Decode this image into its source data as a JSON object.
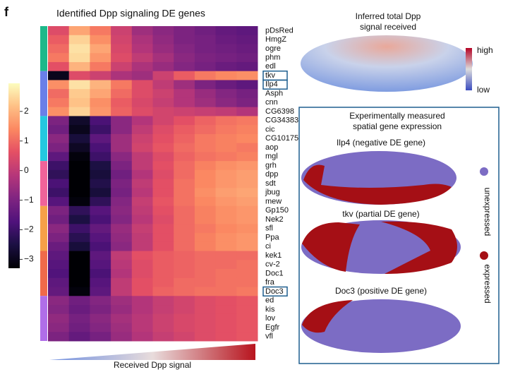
{
  "figure": {
    "panel_label": "f",
    "title": "Identified Dpp signaling DE genes"
  },
  "chart_data": {
    "type": "heatmap",
    "colormap": "magma",
    "x_label": "Received Dpp signal",
    "rows": [
      "pDsRed",
      "HmgZ",
      "ogre",
      "phm",
      "edl",
      "tkv",
      "Ilp4",
      "Asph",
      "cnn",
      "CG6398",
      "CG34383",
      "cic",
      "CG10175",
      "aop",
      "mgl",
      "grh",
      "dpp",
      "sdt",
      "jbug",
      "mew",
      "Gp150",
      "Nek2",
      "sfl",
      "Ppa",
      "ci",
      "kek1",
      "cv-2",
      "Doc1",
      "fra",
      "Doc3",
      "ed",
      "kis",
      "lov",
      "Egfr",
      "vfl"
    ],
    "highlighted_rows": [
      5,
      6,
      29
    ],
    "clim": [
      -3.3,
      2.95
    ],
    "cticks": [
      {
        "value": -3,
        "label": "−3"
      },
      {
        "value": -2,
        "label": "−2"
      },
      {
        "value": -1,
        "label": "−1"
      },
      0,
      1,
      2
    ],
    "values": [
      [
        0.5,
        1.8,
        1.2,
        0.2,
        -0.5,
        -0.8,
        -1,
        -1.2,
        -1.4,
        -1.5
      ],
      [
        0.8,
        2.4,
        1.5,
        0.3,
        -0.3,
        -0.7,
        -1,
        -1.1,
        -1.3,
        -1.4
      ],
      [
        1,
        2.6,
        1.8,
        0.4,
        -0.2,
        -0.6,
        -0.9,
        -1.1,
        -1.2,
        -1.3
      ],
      [
        1.2,
        2.5,
        1.6,
        0.5,
        0,
        -0.4,
        -0.8,
        -1,
        -1.1,
        -1.2
      ],
      [
        0.6,
        2,
        1.2,
        0.2,
        -0.3,
        -0.6,
        -0.9,
        -1.1,
        -1.3,
        -1.4
      ],
      [
        -3,
        0.5,
        0.2,
        -0.3,
        -0.5,
        0.2,
        0.8,
        1.2,
        1.4,
        1.5
      ],
      [
        1.5,
        2.6,
        2,
        1.2,
        0.5,
        0,
        -0.5,
        -1,
        -1.3,
        -1.5
      ],
      [
        1,
        2.3,
        1.8,
        1,
        0.5,
        0.2,
        -0.2,
        -0.6,
        -0.9,
        -1.1
      ],
      [
        1.2,
        2.2,
        1.5,
        0.8,
        0.4,
        0.1,
        -0.2,
        -0.5,
        -0.8,
        -1
      ],
      [
        1.5,
        2.4,
        1.6,
        0.9,
        0.5,
        0.3,
        0.2,
        0.1,
        0,
        -0.2
      ],
      [
        -1,
        -2.8,
        -1.8,
        -0.8,
        -0.2,
        0.3,
        0.6,
        0.9,
        1.1,
        1.2
      ],
      [
        -1.2,
        -3,
        -2,
        -0.8,
        0,
        0.5,
        0.8,
        1,
        1.2,
        1.3
      ],
      [
        -0.8,
        -2.6,
        -1.5,
        -0.5,
        0.2,
        0.6,
        0.9,
        1.2,
        1.3,
        1.4
      ],
      [
        -1,
        -2.9,
        -1.8,
        -0.5,
        0.3,
        0.7,
        1,
        1.2,
        1.3,
        1.2
      ],
      [
        -1.5,
        -3.2,
        -2,
        -0.8,
        0,
        0.5,
        0.9,
        1.1,
        1.2,
        1.3
      ],
      [
        -2,
        -3.5,
        -2.5,
        -1,
        0,
        0.6,
        1,
        1.3,
        1.5,
        1.6
      ],
      [
        -2.2,
        -3.6,
        -2.6,
        -1.2,
        -0.2,
        0.5,
        1,
        1.4,
        1.6,
        1.7
      ],
      [
        -1.8,
        -3.4,
        -2.4,
        -1,
        0,
        0.6,
        1.1,
        1.4,
        1.6,
        1.7
      ],
      [
        -2,
        -3.5,
        -2.6,
        -1.1,
        -0.1,
        0.6,
        1.1,
        1.5,
        1.7,
        1.8
      ],
      [
        -1.6,
        -3.2,
        -2.2,
        -0.9,
        0.1,
        0.7,
        1.1,
        1.4,
        1.6,
        1.7
      ],
      [
        -1,
        -2.2,
        -1.6,
        -0.8,
        0,
        0.6,
        1,
        1.3,
        1.5,
        1.6
      ],
      [
        -1.2,
        -2.5,
        -1.8,
        -0.9,
        -0.1,
        0.5,
        1,
        1.3,
        1.5,
        1.6
      ],
      [
        -0.8,
        -2,
        -1.4,
        -0.6,
        0.1,
        0.6,
        1,
        1.2,
        1.4,
        1.5
      ],
      [
        -1,
        -2.3,
        -1.6,
        -0.7,
        0,
        0.6,
        1,
        1.3,
        1.5,
        1.6
      ],
      [
        -1.3,
        -2.6,
        -1.8,
        -0.8,
        0,
        0.6,
        1,
        1.3,
        1.5,
        1.6
      ],
      [
        -1.5,
        -3.3,
        -1.5,
        0,
        0.6,
        0.8,
        0.9,
        1,
        1,
        1
      ],
      [
        -1.6,
        -3.4,
        -1.6,
        -0.1,
        0.5,
        0.8,
        0.9,
        1,
        1,
        1.1
      ],
      [
        -1.7,
        -3.5,
        -1.8,
        -0.2,
        0.5,
        0.8,
        0.9,
        1,
        1.1,
        1.1
      ],
      [
        -1.5,
        -3.3,
        -1.6,
        0,
        0.6,
        0.8,
        1,
        1,
        1.1,
        1.1
      ],
      [
        -1.4,
        -3.2,
        -1.5,
        0,
        0.6,
        0.9,
        1,
        1.1,
        1.1,
        1.2
      ],
      [
        -0.8,
        -1.2,
        -0.9,
        -0.5,
        -0.2,
        0.1,
        0.3,
        0.5,
        0.6,
        0.7
      ],
      [
        -0.9,
        -1.3,
        -1,
        -0.6,
        -0.2,
        0.1,
        0.3,
        0.5,
        0.6,
        0.7
      ],
      [
        -0.7,
        -1.1,
        -0.8,
        -0.4,
        -0.1,
        0.2,
        0.4,
        0.5,
        0.6,
        0.7
      ],
      [
        -0.8,
        -1.2,
        -0.9,
        -0.5,
        -0.1,
        0.2,
        0.4,
        0.5,
        0.6,
        0.7
      ],
      [
        -1,
        -1.4,
        -1.1,
        -0.6,
        -0.2,
        0.1,
        0.3,
        0.5,
        0.6,
        0.7
      ]
    ]
  },
  "inferred": {
    "title_lines": [
      "Inferred total Dpp",
      "signal received"
    ],
    "scale_high": "high",
    "scale_low": "low"
  },
  "measured": {
    "title_lines": [
      "Experimentally measured",
      "spatial gene expression"
    ],
    "panels": [
      "Ilp4 (negative DE gene)",
      "tkv (partial DE gene)",
      "Doc3 (positive DE gene)"
    ],
    "legend": [
      "unexpressed",
      "expressed"
    ]
  }
}
